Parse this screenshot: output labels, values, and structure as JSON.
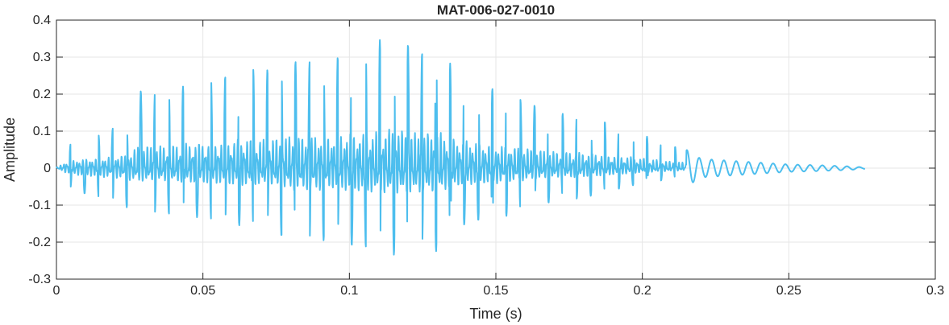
{
  "chart_data": {
    "type": "line",
    "title": "MAT-006-027-0010",
    "xlabel": "Time (s)",
    "ylabel": "Amplitude",
    "xlim": [
      0,
      0.3
    ],
    "ylim": [
      -0.3,
      0.4
    ],
    "xticks": [
      0,
      0.05,
      0.1,
      0.15,
      0.2,
      0.25,
      0.3
    ],
    "xtick_labels": [
      "0",
      "0.05",
      "0.1",
      "0.15",
      "0.2",
      "0.25",
      "0.3"
    ],
    "yticks": [
      -0.3,
      -0.2,
      -0.1,
      0,
      0.1,
      0.2,
      0.3,
      0.4
    ],
    "ytick_labels": [
      "-0.3",
      "-0.2",
      "-0.1",
      "0",
      "0.1",
      "0.2",
      "0.3",
      "0.4"
    ],
    "grid": true,
    "series": [
      {
        "color": "#4DBEEE",
        "x_range": [
          0,
          0.276
        ],
        "envelope": {
          "t": [
            0,
            0.003,
            0.006,
            0.01,
            0.015,
            0.02,
            0.025,
            0.028,
            0.035,
            0.045,
            0.055,
            0.065,
            0.07,
            0.08,
            0.085,
            0.09,
            0.095,
            0.1,
            0.105,
            0.11,
            0.115,
            0.12,
            0.125,
            0.13,
            0.135,
            0.14,
            0.145,
            0.15,
            0.16,
            0.17,
            0.18,
            0.19,
            0.2,
            0.21,
            0.215,
            0.22,
            0.23,
            0.24,
            0.25,
            0.26,
            0.27,
            0.276
          ],
          "max": [
            0.0,
            0.055,
            0.07,
            0.08,
            0.09,
            0.11,
            0.12,
            0.21,
            0.2,
            0.225,
            0.24,
            0.27,
            0.26,
            0.29,
            0.285,
            0.29,
            0.295,
            0.32,
            0.31,
            0.345,
            0.36,
            0.335,
            0.31,
            0.34,
            0.275,
            0.25,
            0.23,
            0.21,
            0.18,
            0.15,
            0.14,
            0.12,
            0.09,
            0.06,
            0.05,
            0.025,
            0.02,
            0.015,
            0.01,
            0.008,
            0.005,
            0.002
          ],
          "min": [
            0.0,
            -0.04,
            -0.06,
            -0.07,
            -0.08,
            -0.09,
            -0.11,
            -0.12,
            -0.12,
            -0.13,
            -0.14,
            -0.16,
            -0.15,
            -0.2,
            -0.2,
            -0.2,
            -0.18,
            -0.21,
            -0.21,
            -0.23,
            -0.235,
            -0.23,
            -0.22,
            -0.225,
            -0.17,
            -0.15,
            -0.14,
            -0.14,
            -0.11,
            -0.09,
            -0.08,
            -0.06,
            -0.04,
            -0.03,
            -0.02,
            -0.015,
            -0.012,
            -0.008,
            -0.006,
            -0.004,
            -0.003,
            -0.001
          ]
        }
      }
    ]
  }
}
